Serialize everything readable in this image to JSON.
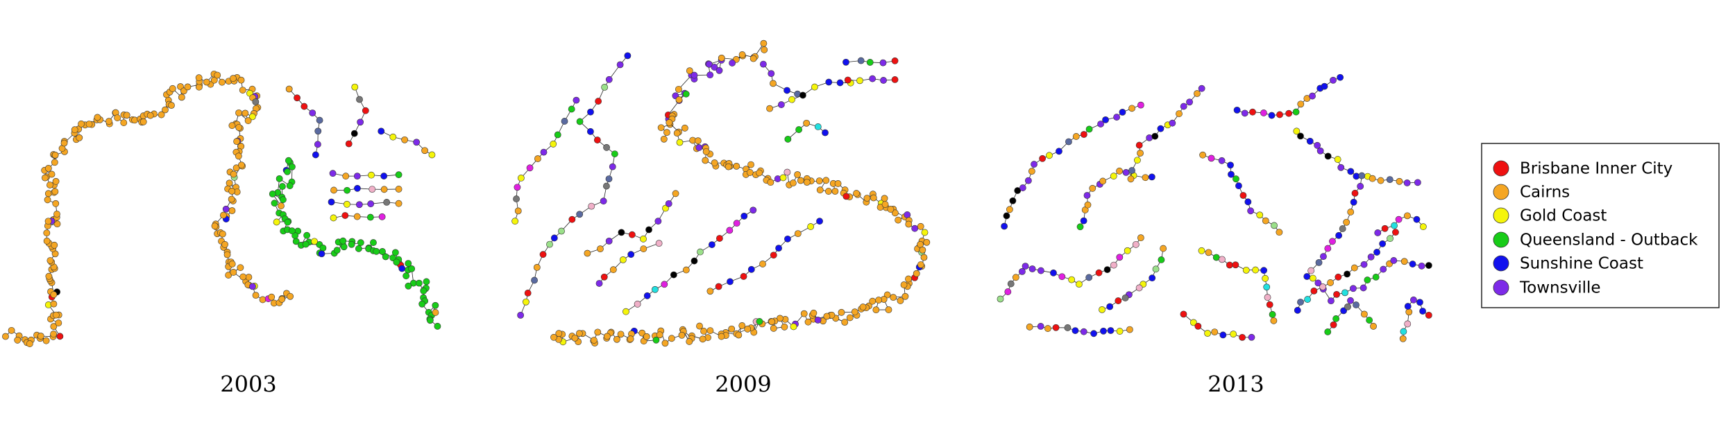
{
  "panels": [
    {
      "label": "2003"
    },
    {
      "label": "2009"
    },
    {
      "label": "2013"
    }
  ],
  "legend": {
    "entries": [
      {
        "name": "Brisbane Inner City",
        "color": "#ee1111"
      },
      {
        "name": "Cairns",
        "color": "#f5a623"
      },
      {
        "name": "Gold Coast",
        "color": "#f5f50a"
      },
      {
        "name": "Queensland - Outback",
        "color": "#18cc18"
      },
      {
        "name": "Sunshine Coast",
        "color": "#1111ee"
      },
      {
        "name": "Townsville",
        "color": "#7d2ae8"
      }
    ]
  }
}
